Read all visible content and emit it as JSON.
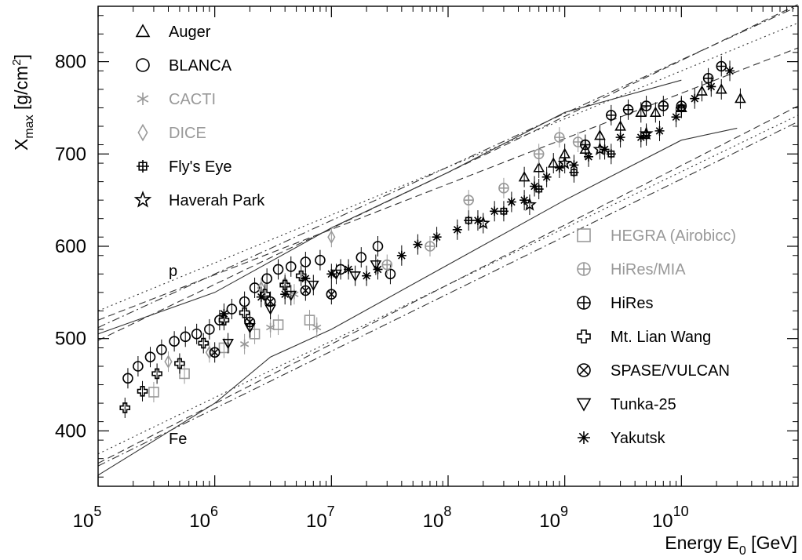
{
  "chart_data": {
    "type": "scatter",
    "xscale": "log",
    "xlim": [
      100000,
      100000000000
    ],
    "ylim": [
      340,
      860
    ],
    "x_ticks": [
      {
        "base": "10",
        "exp": "5",
        "value": 100000
      },
      {
        "base": "10",
        "exp": "6",
        "value": 1000000
      },
      {
        "base": "10",
        "exp": "7",
        "value": 10000000
      },
      {
        "base": "10",
        "exp": "8",
        "value": 100000000
      },
      {
        "base": "10",
        "exp": "9",
        "value": 1000000000
      },
      {
        "base": "10",
        "exp": "10",
        "value": 10000000000
      }
    ],
    "y_ticks": [
      400,
      500,
      600,
      700,
      800
    ],
    "xlabel": {
      "text": "Energy E",
      "sub": "0",
      "after": " [GeV]"
    },
    "ylabel": {
      "text": "X",
      "sub": "max",
      "after": " [g/cm",
      "sup": "2",
      "end": "]"
    },
    "annotations": [
      {
        "text": "p",
        "x": 1000000,
        "y": 591
      },
      {
        "text": "Fe",
        "x": 1000000,
        "y": 389
      }
    ],
    "model_curves": [
      {
        "style": "solid",
        "points": [
          [
            100000,
            505
          ],
          [
            1000000,
            550
          ],
          [
            10000000,
            620
          ],
          [
            100000000,
            680
          ],
          [
            1000000000,
            745
          ],
          [
            10000000000,
            780
          ]
        ]
      },
      {
        "style": "solid",
        "points": [
          [
            100000,
            352
          ],
          [
            1000000,
            430
          ],
          [
            3000000,
            480
          ],
          [
            10000000,
            510
          ],
          [
            100000000,
            580
          ],
          [
            1000000000,
            650
          ],
          [
            10000000000,
            715
          ],
          [
            30000000000,
            728
          ]
        ]
      },
      {
        "style": "dashed",
        "points": [
          [
            100000,
            498
          ],
          [
            100000000000,
            862
          ]
        ]
      },
      {
        "style": "dashed",
        "points": [
          [
            100000,
            520
          ],
          [
            100000000000,
            815
          ]
        ]
      },
      {
        "style": "dashed",
        "points": [
          [
            100000,
            365
          ],
          [
            100000000000,
            752
          ]
        ]
      },
      {
        "style": "dashdot",
        "points": [
          [
            100000,
            512
          ],
          [
            100000000000,
            860
          ]
        ]
      },
      {
        "style": "dashdot",
        "points": [
          [
            100000,
            362
          ],
          [
            100000000000,
            735
          ]
        ]
      },
      {
        "style": "dotted",
        "points": [
          [
            100000,
            530
          ],
          [
            100000000000,
            842
          ]
        ]
      },
      {
        "style": "dotted",
        "points": [
          [
            100000,
            375
          ],
          [
            100000000000,
            742
          ]
        ]
      }
    ],
    "series": [
      {
        "name": "Auger",
        "marker": "triangle",
        "color": "#000000",
        "points": [
          [
            450000000,
            675
          ],
          [
            600000000,
            685
          ],
          [
            800000000,
            690
          ],
          [
            1000000000,
            700
          ],
          [
            1500000000,
            705
          ],
          [
            2000000000,
            720
          ],
          [
            3000000000,
            730
          ],
          [
            4500000000,
            745
          ],
          [
            6000000000,
            745
          ],
          [
            10000000000,
            750
          ],
          [
            15000000000,
            768
          ],
          [
            22000000000,
            770
          ],
          [
            32000000000,
            760
          ]
        ]
      },
      {
        "name": "BLANCA",
        "marker": "circle",
        "color": "#000000",
        "points": [
          [
            180000,
            457
          ],
          [
            220000,
            470
          ],
          [
            280000,
            480
          ],
          [
            350000,
            488
          ],
          [
            450000,
            497
          ],
          [
            560000,
            502
          ],
          [
            700000,
            505
          ],
          [
            900000,
            510
          ],
          [
            1100000,
            520
          ],
          [
            1400000,
            532
          ],
          [
            1800000,
            540
          ],
          [
            2200000,
            555
          ],
          [
            2800000,
            565
          ],
          [
            3500000,
            575
          ],
          [
            4500000,
            578
          ],
          [
            6000000,
            583
          ],
          [
            8000000,
            585
          ],
          [
            12000000,
            575
          ],
          [
            18000000,
            588
          ],
          [
            25000000,
            600
          ],
          [
            32000000,
            570
          ]
        ]
      },
      {
        "name": "CACTI",
        "marker": "asterisk",
        "color": "#999999",
        "points": [
          [
            1800000,
            494
          ],
          [
            3000000,
            512
          ],
          [
            4800000,
            548
          ],
          [
            7500000,
            512
          ]
        ]
      },
      {
        "name": "DICE",
        "marker": "diamond",
        "color": "#999999",
        "points": [
          [
            400000,
            475
          ],
          [
            900000,
            485
          ],
          [
            2500000,
            555
          ],
          [
            4000000,
            560
          ],
          [
            10000000,
            610
          ]
        ]
      },
      {
        "name": "Fly's Eye",
        "marker": "square-cross",
        "color": "#000000",
        "points": [
          [
            150000000,
            628
          ],
          [
            300000000,
            638
          ],
          [
            600000000,
            662
          ],
          [
            1200000000,
            680
          ],
          [
            2500000000,
            700
          ],
          [
            5000000000,
            720
          ],
          [
            10000000000,
            750
          ]
        ]
      },
      {
        "name": "Haverah Park",
        "marker": "star",
        "color": "#000000",
        "points": [
          [
            200000000,
            625
          ],
          [
            500000000,
            645
          ],
          [
            1000000000,
            690
          ],
          [
            2000000000,
            705
          ],
          [
            5000000000,
            722
          ]
        ]
      },
      {
        "name": "HEGRA (Airobicc)",
        "marker": "square",
        "color": "#999999",
        "points": [
          [
            300000,
            442
          ],
          [
            550000,
            462
          ],
          [
            1200000,
            490
          ],
          [
            2200000,
            505
          ],
          [
            3500000,
            515
          ],
          [
            6500000,
            520
          ]
        ]
      },
      {
        "name": "HiRes/MIA",
        "marker": "circle-plus",
        "color": "#999999",
        "points": [
          [
            30000000,
            580
          ],
          [
            70000000,
            600
          ],
          [
            150000000,
            650
          ],
          [
            300000000,
            663
          ],
          [
            600000000,
            700
          ],
          [
            900000000,
            718
          ],
          [
            1300000000,
            713
          ]
        ]
      },
      {
        "name": "HiRes",
        "marker": "circle-plus",
        "color": "#000000",
        "points": [
          [
            1500000000,
            710
          ],
          [
            2500000000,
            742
          ],
          [
            3500000000,
            748
          ],
          [
            5000000000,
            752
          ],
          [
            7000000000,
            752
          ],
          [
            10000000000,
            752
          ],
          [
            17000000000,
            782
          ],
          [
            22000000000,
            795
          ]
        ]
      },
      {
        "name": "Mt. Lian Wang",
        "marker": "plus",
        "color": "#000000",
        "points": [
          [
            170000,
            425
          ],
          [
            240000,
            443
          ],
          [
            320000,
            462
          ],
          [
            500000,
            473
          ],
          [
            800000,
            495
          ],
          [
            1200000,
            520
          ],
          [
            1800000,
            528
          ],
          [
            2700000,
            548
          ],
          [
            4000000,
            558
          ],
          [
            5500000,
            568
          ]
        ]
      },
      {
        "name": "SPASE/VULCAN",
        "marker": "circle-x",
        "color": "#000000",
        "points": [
          [
            1000000,
            485
          ],
          [
            2000000,
            518
          ],
          [
            3000000,
            540
          ],
          [
            6000000,
            552
          ],
          [
            10000000,
            548
          ]
        ]
      },
      {
        "name": "Tunka-25",
        "marker": "triangle-down",
        "color": "#000000",
        "points": [
          [
            1300000,
            495
          ],
          [
            2000000,
            512
          ],
          [
            3000000,
            532
          ],
          [
            4500000,
            547
          ],
          [
            7000000,
            558
          ],
          [
            11000000,
            570
          ],
          [
            16000000,
            568
          ],
          [
            24000000,
            580
          ]
        ]
      },
      {
        "name": "Yakutsk",
        "marker": "star6",
        "color": "#000000",
        "points": [
          [
            1200000,
            527
          ],
          [
            2500000,
            545
          ],
          [
            4000000,
            548
          ],
          [
            6000000,
            565
          ],
          [
            10000000,
            570
          ],
          [
            14000000,
            575
          ],
          [
            20000000,
            568
          ],
          [
            25000000,
            575
          ],
          [
            40000000,
            590
          ],
          [
            55000000,
            602
          ],
          [
            80000000,
            610
          ],
          [
            120000000,
            618
          ],
          [
            180000000,
            628
          ],
          [
            250000000,
            638
          ],
          [
            350000000,
            648
          ],
          [
            450000000,
            650
          ],
          [
            550000000,
            665
          ],
          [
            700000000,
            675
          ],
          [
            900000000,
            685
          ],
          [
            1200000000,
            688
          ],
          [
            1600000000,
            697
          ],
          [
            2200000000,
            705
          ],
          [
            3000000000,
            718
          ],
          [
            4500000000,
            718
          ],
          [
            6500000000,
            725
          ],
          [
            9000000000,
            740
          ],
          [
            13000000000,
            760
          ],
          [
            18000000000,
            773
          ],
          [
            26000000000,
            790
          ]
        ]
      }
    ]
  }
}
